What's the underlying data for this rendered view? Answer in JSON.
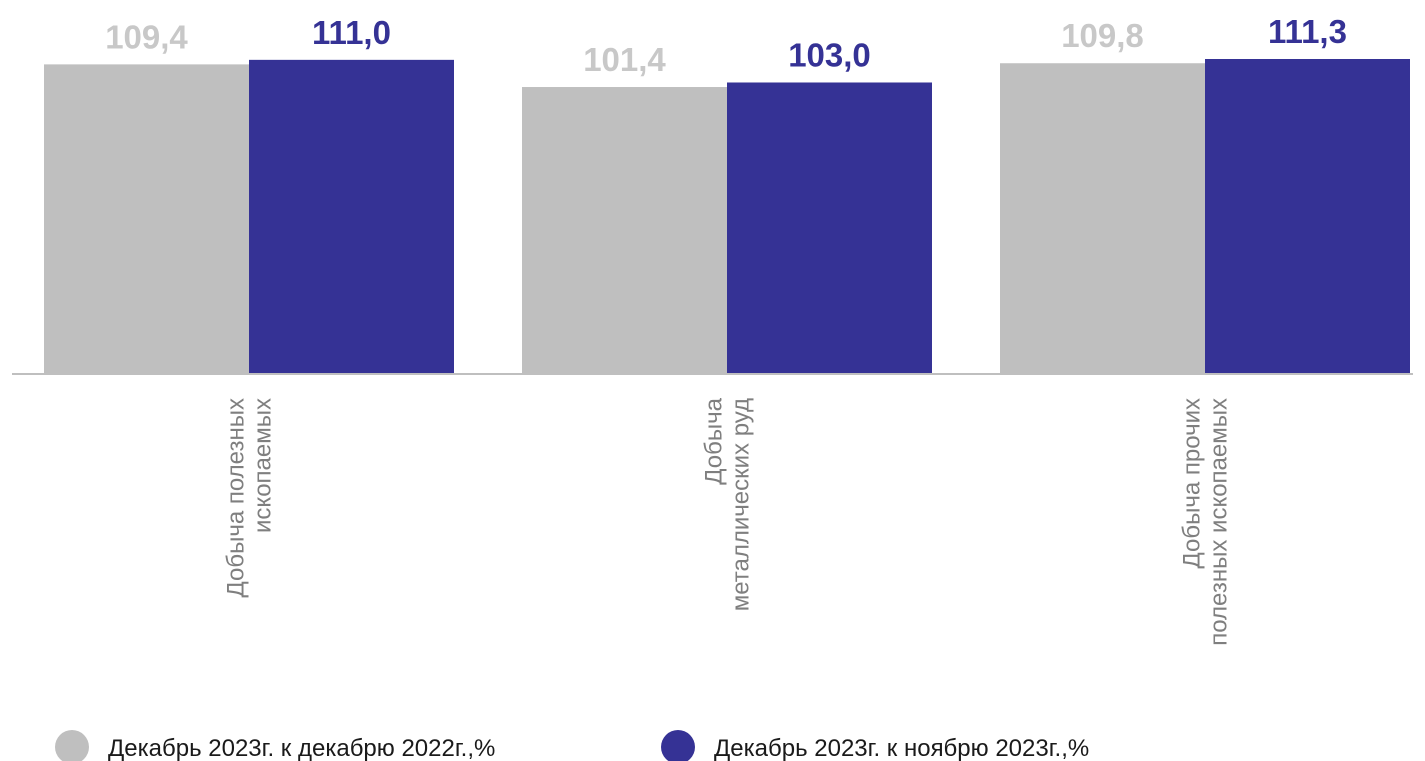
{
  "chart_data": {
    "type": "bar",
    "title": "",
    "xlabel": "",
    "ylabel": "",
    "categories": [
      [
        "Добыча полезных",
        "ископаемых"
      ],
      [
        "Добыча",
        "металлических руд"
      ],
      [
        "Добыча прочих",
        "полезных ископаемых"
      ]
    ],
    "series": [
      {
        "name": "Декабрь 2023г. к декабрю 2022г.,%",
        "values": [
          109.4,
          101.4,
          109.8
        ],
        "labels": [
          "109,4",
          "101,4",
          "109,8"
        ],
        "color": "#bfbfbf",
        "label_color": "#c8c8c8"
      },
      {
        "name": "Декабрь 2023г. к ноябрю 2023г.,%",
        "values": [
          111.0,
          103.0,
          111.3
        ],
        "labels": [
          "111,0",
          "103,0",
          "111,3"
        ],
        "color": "#353295",
        "label_color": "#353295"
      }
    ],
    "ylim": [
      0,
      111.3
    ],
    "grid": false,
    "legend_position": "bottom"
  }
}
